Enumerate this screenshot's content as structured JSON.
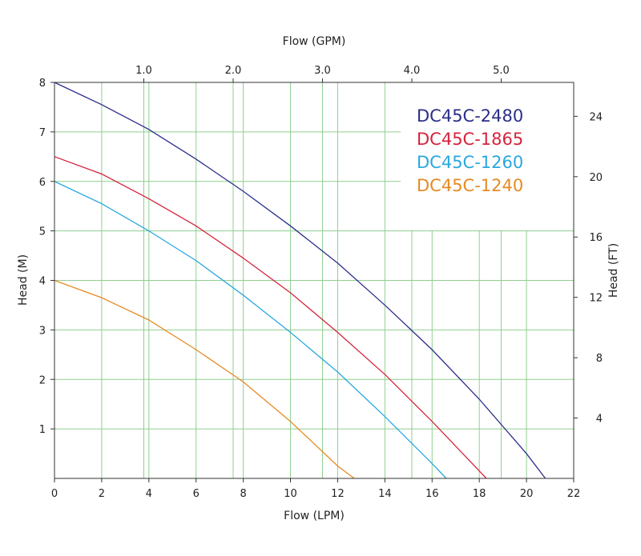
{
  "chart_data": {
    "type": "line",
    "xlabel_bottom": "Flow (LPM)",
    "xlabel_top": "Flow (GPM)",
    "ylabel_left": "Head (M)",
    "ylabel_right": "Head (FT)",
    "xlim": [
      0,
      22
    ],
    "ylim": [
      0,
      8
    ],
    "x_ticks": [
      "0",
      "2",
      "4",
      "6",
      "8",
      "10",
      "12",
      "14",
      "16",
      "18",
      "20",
      "22"
    ],
    "y_ticks_left": [
      "1",
      "2",
      "3",
      "4",
      "5",
      "6",
      "7",
      "8"
    ],
    "x_ticks_top": [
      "1.0",
      "2.0",
      "3.0",
      "4.0",
      "5.0"
    ],
    "y_ticks_right": [
      "4",
      "8",
      "12",
      "16",
      "20",
      "24"
    ],
    "grid": true,
    "legend_position": "top-right",
    "series": [
      {
        "name": "DC45C-2480",
        "color": "#2b2f8a",
        "x": [
          0,
          2,
          4,
          6,
          8,
          10,
          12,
          14,
          16,
          18,
          20,
          20.8
        ],
        "y": [
          8.0,
          7.55,
          7.05,
          6.45,
          5.8,
          5.1,
          4.35,
          3.5,
          2.6,
          1.6,
          0.5,
          0
        ]
      },
      {
        "name": "DC45C-1865",
        "color": "#d6233c",
        "x": [
          0,
          2,
          4,
          6,
          8,
          10,
          12,
          14,
          16,
          18,
          18.3
        ],
        "y": [
          6.5,
          6.15,
          5.65,
          5.1,
          4.45,
          3.75,
          2.95,
          2.1,
          1.15,
          0.15,
          0
        ]
      },
      {
        "name": "DC45C-1260",
        "color": "#29a8df",
        "x": [
          0,
          2,
          4,
          6,
          8,
          10,
          12,
          14,
          16,
          16.6
        ],
        "y": [
          6.0,
          5.55,
          5.0,
          4.4,
          3.7,
          2.95,
          2.15,
          1.25,
          0.3,
          0
        ]
      },
      {
        "name": "DC45C-1240",
        "color": "#e68a25",
        "x": [
          0,
          2,
          4,
          6,
          8,
          10,
          12,
          12.7
        ],
        "y": [
          4.0,
          3.65,
          3.2,
          2.6,
          1.95,
          1.15,
          0.25,
          0
        ]
      }
    ]
  }
}
